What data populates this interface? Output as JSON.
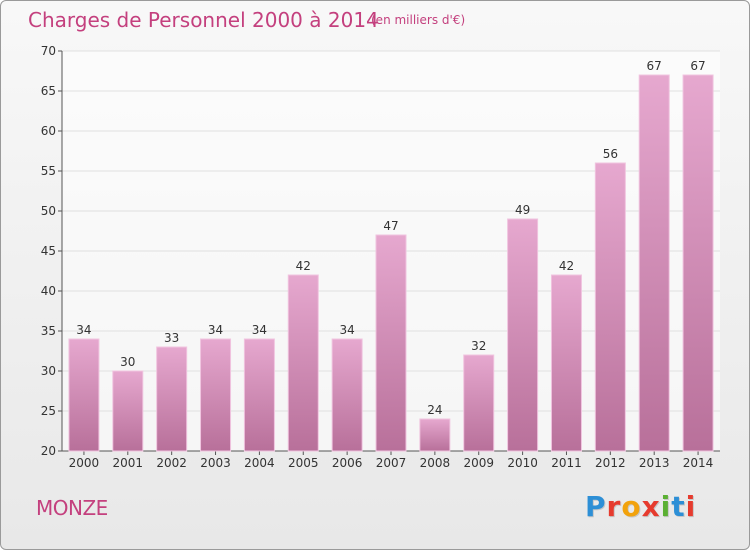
{
  "header": {
    "title": "Charges de Personnel 2000 à 2014",
    "subtitle": "(en milliers d'€)"
  },
  "footer": {
    "place": "MONZE",
    "logo_letters": [
      {
        "ch": "P",
        "color": "#2d8fd6"
      },
      {
        "ch": "r",
        "color": "#e63b2e"
      },
      {
        "ch": "o",
        "color": "#f2a20c"
      },
      {
        "ch": "x",
        "color": "#e63b2e"
      },
      {
        "ch": "i",
        "color": "#5bb033"
      },
      {
        "ch": "t",
        "color": "#2d8fd6"
      },
      {
        "ch": "i",
        "color": "#e63b2e"
      }
    ]
  },
  "colors": {
    "bar_top": "#e6a8cf",
    "bar_bottom": "#b8709a",
    "text": "#c4407e",
    "grid": "#e0e0e0"
  },
  "chart_data": {
    "type": "bar",
    "categories": [
      "2000",
      "2001",
      "2002",
      "2003",
      "2004",
      "2005",
      "2006",
      "2007",
      "2008",
      "2009",
      "2010",
      "2011",
      "2012",
      "2013",
      "2014"
    ],
    "values": [
      34,
      30,
      33,
      34,
      34,
      42,
      34,
      47,
      24,
      32,
      49,
      42,
      56,
      67,
      67
    ],
    "data_labels": [
      "34",
      "30",
      "33",
      "34",
      "34",
      "42",
      "34",
      "47",
      "24",
      "32",
      "49",
      "42",
      "56",
      "67",
      "67"
    ],
    "ylim": [
      20,
      70
    ],
    "yticks": [
      20,
      25,
      30,
      35,
      40,
      45,
      50,
      55,
      60,
      65,
      70
    ],
    "grid": true
  }
}
